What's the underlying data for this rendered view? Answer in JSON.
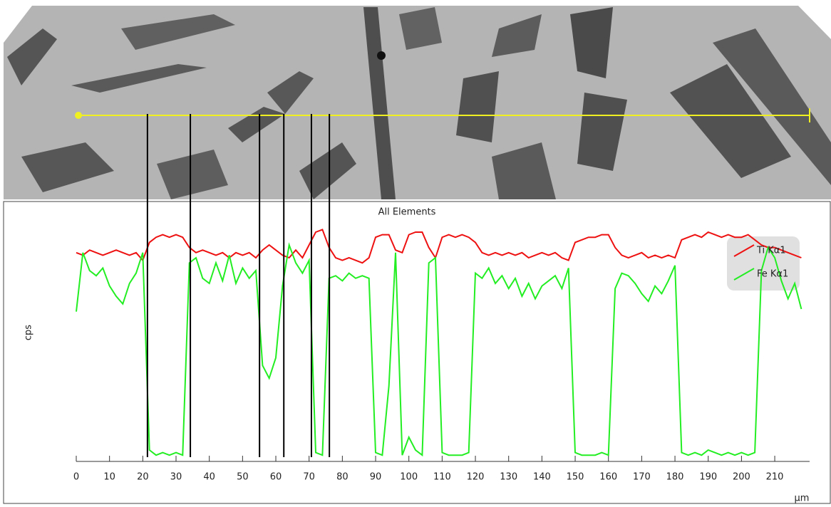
{
  "chart_data": {
    "type": "line",
    "title": "All Elements",
    "y_label": "cps",
    "x_label": "µm",
    "xlim": [
      0,
      220.5
    ],
    "ylim": [
      0,
      100
    ],
    "xticks": [
      0,
      10,
      20,
      30,
      40,
      50,
      60,
      70,
      80,
      90,
      100,
      110,
      120,
      130,
      140,
      150,
      160,
      170,
      180,
      190,
      200,
      210
    ],
    "legend": "top-right",
    "x": [
      0,
      2,
      4,
      6,
      8,
      10,
      12,
      14,
      16,
      18,
      20,
      22,
      24,
      26,
      28,
      30,
      32,
      34,
      36,
      38,
      40,
      42,
      44,
      46,
      48,
      50,
      52,
      54,
      56,
      58,
      60,
      62,
      64,
      66,
      68,
      70,
      72,
      74,
      76,
      78,
      80,
      82,
      84,
      86,
      88,
      90,
      92,
      94,
      96,
      98,
      100,
      102,
      104,
      106,
      108,
      110,
      112,
      114,
      116,
      118,
      120,
      122,
      124,
      126,
      128,
      130,
      132,
      134,
      136,
      138,
      140,
      142,
      144,
      146,
      148,
      150,
      152,
      154,
      156,
      158,
      160,
      162,
      164,
      166,
      168,
      170,
      172,
      174,
      176,
      178,
      180,
      182,
      184,
      186,
      188,
      190,
      192,
      194,
      196,
      198,
      200,
      202,
      204,
      206,
      208,
      210,
      212,
      214,
      216,
      218
    ],
    "series": [
      {
        "name": "Ti Kα1",
        "color": "#ee1111",
        "values": [
          82,
          81,
          83,
          82,
          81,
          82,
          83,
          82,
          81,
          82,
          79,
          86,
          88,
          89,
          88,
          89,
          88,
          84,
          82,
          83,
          82,
          81,
          82,
          80,
          82,
          81,
          82,
          80,
          83,
          85,
          83,
          81,
          80,
          83,
          80,
          85,
          90,
          91,
          84,
          80,
          79,
          80,
          79,
          78,
          80,
          88,
          89,
          89,
          83,
          82,
          89,
          90,
          90,
          84,
          80,
          88,
          89,
          88,
          89,
          88,
          86,
          82,
          81,
          82,
          81,
          82,
          81,
          82,
          80,
          81,
          82,
          81,
          82,
          80,
          79,
          86,
          87,
          88,
          88,
          89,
          89,
          84,
          81,
          80,
          81,
          82,
          80,
          81,
          80,
          81,
          80,
          87,
          88,
          89,
          88,
          90,
          89,
          88,
          89,
          88,
          88,
          89,
          87,
          85,
          84,
          84,
          83,
          82,
          81,
          80
        ]
      },
      {
        "name": "Fe Kα1",
        "color": "#22ee22",
        "values": [
          59,
          82,
          75,
          73,
          76,
          69,
          65,
          62,
          70,
          74,
          82,
          5,
          3,
          4,
          3,
          4,
          3,
          78,
          80,
          72,
          70,
          78,
          71,
          81,
          70,
          76,
          72,
          75,
          38,
          33,
          41,
          69,
          85,
          78,
          74,
          79,
          4,
          3,
          72,
          73,
          71,
          74,
          72,
          73,
          72,
          4,
          3,
          30,
          82,
          3,
          10,
          5,
          3,
          78,
          80,
          4,
          3,
          3,
          3,
          4,
          74,
          72,
          76,
          70,
          73,
          68,
          72,
          65,
          70,
          64,
          69,
          71,
          73,
          68,
          76,
          4,
          3,
          3,
          3,
          4,
          3,
          68,
          74,
          73,
          70,
          66,
          63,
          69,
          66,
          71,
          77,
          4,
          3,
          4,
          3,
          5,
          4,
          3,
          4,
          3,
          4,
          3,
          4,
          75,
          84,
          80,
          71,
          64,
          70,
          60
        ]
      }
    ],
    "markers": [
      21.4,
      34.3,
      55.1,
      62.4,
      70.7,
      76.1
    ]
  }
}
